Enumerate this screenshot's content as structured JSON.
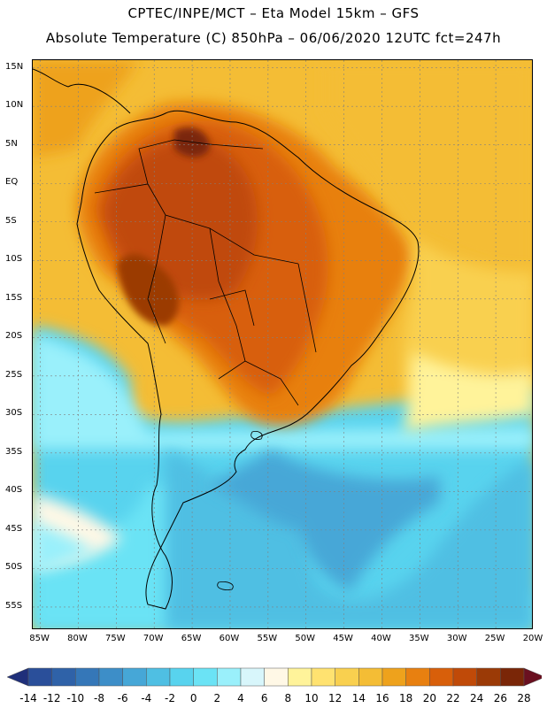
{
  "header": {
    "line1": "CPTEC/INPE/MCT –  Eta Model 15km – GFS",
    "line2": "Absolute Temperature (C) 850hPa – 06/06/2020 12UTC fct=247h"
  },
  "map": {
    "lat_ticks": [
      "15N",
      "10N",
      "5N",
      "EQ",
      "5S",
      "10S",
      "15S",
      "20S",
      "25S",
      "30S",
      "35S",
      "40S",
      "45S",
      "50S",
      "55S"
    ],
    "lon_ticks": [
      "85W",
      "80W",
      "75W",
      "70W",
      "65W",
      "60W",
      "55W",
      "50W",
      "45W",
      "40W",
      "35W",
      "30W",
      "25W",
      "20W"
    ],
    "extent": {
      "west": -86,
      "east": -20,
      "north": 16,
      "south": -58
    }
  },
  "colorbar": {
    "labels": [
      "-14",
      "-12",
      "-10",
      "-8",
      "-6",
      "-4",
      "-2",
      "0",
      "2",
      "4",
      "6",
      "8",
      "10",
      "12",
      "14",
      "16",
      "18",
      "20",
      "22",
      "24",
      "26",
      "28"
    ],
    "colors": [
      "#2a4f9a",
      "#2f62a8",
      "#3577b8",
      "#3d8ec8",
      "#46a7d7",
      "#4fbfe3",
      "#58d3ee",
      "#6be3f5",
      "#9af0fb",
      "#d8f6fb",
      "#fff8e6",
      "#fff39a",
      "#ffe270",
      "#f9d04f",
      "#f4bd35",
      "#eea21c",
      "#e88010",
      "#d85f0a",
      "#c04a08",
      "#9b3a06",
      "#7a2607"
    ],
    "under_color": "#1f2f7a",
    "over_color": "#6a1020"
  }
}
